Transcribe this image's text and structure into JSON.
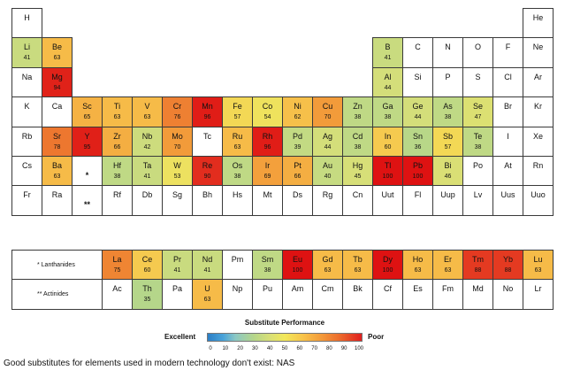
{
  "chart_data": {
    "type": "heatmap",
    "title": "Substitute Performance",
    "scale": {
      "min": 0,
      "max": 100,
      "ticks": [
        "0",
        "10",
        "20",
        "30",
        "40",
        "50",
        "60",
        "70",
        "80",
        "90",
        "100"
      ],
      "low_label": "Excellent",
      "high_label": "Poor"
    },
    "lanthanides_label": "* Lanthanides",
    "actinides_label": "** Actinides",
    "cells": [
      {
        "sym": "H",
        "r": 0,
        "c": 0
      },
      {
        "sym": "He",
        "r": 0,
        "c": 17
      },
      {
        "sym": "Li",
        "r": 1,
        "c": 0,
        "val": 41
      },
      {
        "sym": "Be",
        "r": 1,
        "c": 1,
        "val": 63
      },
      {
        "sym": "B",
        "r": 1,
        "c": 12,
        "val": 41
      },
      {
        "sym": "C",
        "r": 1,
        "c": 13
      },
      {
        "sym": "N",
        "r": 1,
        "c": 14
      },
      {
        "sym": "O",
        "r": 1,
        "c": 15
      },
      {
        "sym": "F",
        "r": 1,
        "c": 16
      },
      {
        "sym": "Ne",
        "r": 1,
        "c": 17
      },
      {
        "sym": "Na",
        "r": 2,
        "c": 0
      },
      {
        "sym": "Mg",
        "r": 2,
        "c": 1,
        "val": 94
      },
      {
        "sym": "Al",
        "r": 2,
        "c": 12,
        "val": 44
      },
      {
        "sym": "Si",
        "r": 2,
        "c": 13
      },
      {
        "sym": "P",
        "r": 2,
        "c": 14
      },
      {
        "sym": "S",
        "r": 2,
        "c": 15
      },
      {
        "sym": "Cl",
        "r": 2,
        "c": 16
      },
      {
        "sym": "Ar",
        "r": 2,
        "c": 17
      },
      {
        "sym": "K",
        "r": 3,
        "c": 0
      },
      {
        "sym": "Ca",
        "r": 3,
        "c": 1
      },
      {
        "sym": "Sc",
        "r": 3,
        "c": 2,
        "val": 65
      },
      {
        "sym": "Ti",
        "r": 3,
        "c": 3,
        "val": 63
      },
      {
        "sym": "V",
        "r": 3,
        "c": 4,
        "val": 63
      },
      {
        "sym": "Cr",
        "r": 3,
        "c": 5,
        "val": 76
      },
      {
        "sym": "Mn",
        "r": 3,
        "c": 6,
        "val": 96
      },
      {
        "sym": "Fe",
        "r": 3,
        "c": 7,
        "val": 57
      },
      {
        "sym": "Co",
        "r": 3,
        "c": 8,
        "val": 54
      },
      {
        "sym": "Ni",
        "r": 3,
        "c": 9,
        "val": 62
      },
      {
        "sym": "Cu",
        "r": 3,
        "c": 10,
        "val": 70
      },
      {
        "sym": "Zn",
        "r": 3,
        "c": 11,
        "val": 38
      },
      {
        "sym": "Ga",
        "r": 3,
        "c": 12,
        "val": 38
      },
      {
        "sym": "Ge",
        "r": 3,
        "c": 13,
        "val": 44
      },
      {
        "sym": "As",
        "r": 3,
        "c": 14,
        "val": 38
      },
      {
        "sym": "Se",
        "r": 3,
        "c": 15,
        "val": 47
      },
      {
        "sym": "Br",
        "r": 3,
        "c": 16
      },
      {
        "sym": "Kr",
        "r": 3,
        "c": 17
      },
      {
        "sym": "Rb",
        "r": 4,
        "c": 0
      },
      {
        "sym": "Sr",
        "r": 4,
        "c": 1,
        "val": 78
      },
      {
        "sym": "Y",
        "r": 4,
        "c": 2,
        "val": 95
      },
      {
        "sym": "Zr",
        "r": 4,
        "c": 3,
        "val": 66
      },
      {
        "sym": "Nb",
        "r": 4,
        "c": 4,
        "val": 42
      },
      {
        "sym": "Mo",
        "r": 4,
        "c": 5,
        "val": 70
      },
      {
        "sym": "Tc",
        "r": 4,
        "c": 6
      },
      {
        "sym": "Ru",
        "r": 4,
        "c": 7,
        "val": 63
      },
      {
        "sym": "Rh",
        "r": 4,
        "c": 8,
        "val": 96
      },
      {
        "sym": "Pd",
        "r": 4,
        "c": 9,
        "val": 39
      },
      {
        "sym": "Ag",
        "r": 4,
        "c": 10,
        "val": 44
      },
      {
        "sym": "Cd",
        "r": 4,
        "c": 11,
        "val": 38
      },
      {
        "sym": "In",
        "r": 4,
        "c": 12,
        "val": 60
      },
      {
        "sym": "Sn",
        "r": 4,
        "c": 13,
        "val": 36
      },
      {
        "sym": "Sb",
        "r": 4,
        "c": 14,
        "val": 57
      },
      {
        "sym": "Te",
        "r": 4,
        "c": 15,
        "val": 38
      },
      {
        "sym": "I",
        "r": 4,
        "c": 16
      },
      {
        "sym": "Xe",
        "r": 4,
        "c": 17
      },
      {
        "sym": "Cs",
        "r": 5,
        "c": 0
      },
      {
        "sym": "Ba",
        "r": 5,
        "c": 1,
        "val": 63
      },
      {
        "sym": "*",
        "r": 5,
        "c": 2,
        "mark": true
      },
      {
        "sym": "Hf",
        "r": 5,
        "c": 3,
        "val": 38
      },
      {
        "sym": "Ta",
        "r": 5,
        "c": 4,
        "val": 41
      },
      {
        "sym": "W",
        "r": 5,
        "c": 5,
        "val": 53
      },
      {
        "sym": "Re",
        "r": 5,
        "c": 6,
        "val": 90
      },
      {
        "sym": "Os",
        "r": 5,
        "c": 7,
        "val": 38
      },
      {
        "sym": "Ir",
        "r": 5,
        "c": 8,
        "val": 69
      },
      {
        "sym": "Pt",
        "r": 5,
        "c": 9,
        "val": 66
      },
      {
        "sym": "Au",
        "r": 5,
        "c": 10,
        "val": 40
      },
      {
        "sym": "Hg",
        "r": 5,
        "c": 11,
        "val": 45
      },
      {
        "sym": "Tl",
        "r": 5,
        "c": 12,
        "val": 100
      },
      {
        "sym": "Pb",
        "r": 5,
        "c": 13,
        "val": 100
      },
      {
        "sym": "Bi",
        "r": 5,
        "c": 14,
        "val": 46
      },
      {
        "sym": "Po",
        "r": 5,
        "c": 15
      },
      {
        "sym": "At",
        "r": 5,
        "c": 16
      },
      {
        "sym": "Rn",
        "r": 5,
        "c": 17
      },
      {
        "sym": "Fr",
        "r": 6,
        "c": 0
      },
      {
        "sym": "Ra",
        "r": 6,
        "c": 1
      },
      {
        "sym": "**",
        "r": 6,
        "c": 2,
        "mark": true
      },
      {
        "sym": "Rf",
        "r": 6,
        "c": 3
      },
      {
        "sym": "Db",
        "r": 6,
        "c": 4
      },
      {
        "sym": "Sg",
        "r": 6,
        "c": 5
      },
      {
        "sym": "Bh",
        "r": 6,
        "c": 6
      },
      {
        "sym": "Hs",
        "r": 6,
        "c": 7
      },
      {
        "sym": "Mt",
        "r": 6,
        "c": 8
      },
      {
        "sym": "Ds",
        "r": 6,
        "c": 9
      },
      {
        "sym": "Rg",
        "r": 6,
        "c": 10
      },
      {
        "sym": "Cn",
        "r": 6,
        "c": 11
      },
      {
        "sym": "Uut",
        "r": 6,
        "c": 12
      },
      {
        "sym": "Fl",
        "r": 6,
        "c": 13
      },
      {
        "sym": "Uup",
        "r": 6,
        "c": 14
      },
      {
        "sym": "Lv",
        "r": 6,
        "c": 15
      },
      {
        "sym": "Uus",
        "r": 6,
        "c": 16
      },
      {
        "sym": "Uuo",
        "r": 6,
        "c": 17
      },
      {
        "sym": "La",
        "r": 7,
        "c": 3,
        "val": 75
      },
      {
        "sym": "Ce",
        "r": 7,
        "c": 4,
        "val": 60
      },
      {
        "sym": "Pr",
        "r": 7,
        "c": 5,
        "val": 41
      },
      {
        "sym": "Nd",
        "r": 7,
        "c": 6,
        "val": 41
      },
      {
        "sym": "Pm",
        "r": 7,
        "c": 7
      },
      {
        "sym": "Sm",
        "r": 7,
        "c": 8,
        "val": 38
      },
      {
        "sym": "Eu",
        "r": 7,
        "c": 9,
        "val": 100
      },
      {
        "sym": "Gd",
        "r": 7,
        "c": 10,
        "val": 63
      },
      {
        "sym": "Tb",
        "r": 7,
        "c": 11,
        "val": 63
      },
      {
        "sym": "Dy",
        "r": 7,
        "c": 12,
        "val": 100
      },
      {
        "sym": "Ho",
        "r": 7,
        "c": 13,
        "val": 63
      },
      {
        "sym": "Er",
        "r": 7,
        "c": 14,
        "val": 63
      },
      {
        "sym": "Tm",
        "r": 7,
        "c": 15,
        "val": 88
      },
      {
        "sym": "Yb",
        "r": 7,
        "c": 16,
        "val": 88
      },
      {
        "sym": "Lu",
        "r": 7,
        "c": 17,
        "val": 63
      },
      {
        "sym": "Ac",
        "r": 8,
        "c": 3
      },
      {
        "sym": "Th",
        "r": 8,
        "c": 4,
        "val": 35
      },
      {
        "sym": "Pa",
        "r": 8,
        "c": 5
      },
      {
        "sym": "U",
        "r": 8,
        "c": 6,
        "val": 63
      },
      {
        "sym": "Np",
        "r": 8,
        "c": 7
      },
      {
        "sym": "Pu",
        "r": 8,
        "c": 8
      },
      {
        "sym": "Am",
        "r": 8,
        "c": 9
      },
      {
        "sym": "Cm",
        "r": 8,
        "c": 10
      },
      {
        "sym": "Bk",
        "r": 8,
        "c": 11
      },
      {
        "sym": "Cf",
        "r": 8,
        "c": 12
      },
      {
        "sym": "Es",
        "r": 8,
        "c": 13
      },
      {
        "sym": "Fm",
        "r": 8,
        "c": 14
      },
      {
        "sym": "Md",
        "r": 8,
        "c": 15
      },
      {
        "sym": "No",
        "r": 8,
        "c": 16
      },
      {
        "sym": "Lr",
        "r": 8,
        "c": 17
      }
    ]
  },
  "caption": "Good substitutes for elements used in modern technology don't exist: NAS"
}
